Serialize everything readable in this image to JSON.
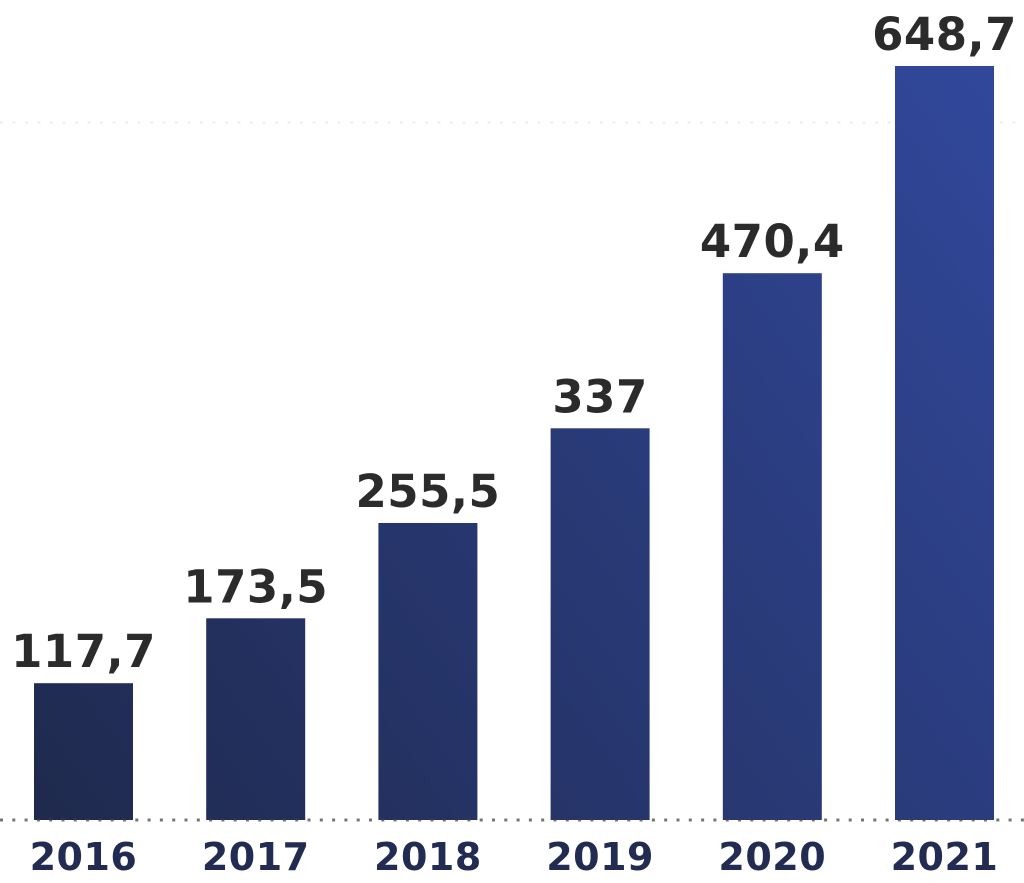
{
  "chart_data": {
    "type": "bar",
    "title": "",
    "xlabel": "",
    "ylabel": "",
    "categories": [
      "2016",
      "2017",
      "2018",
      "2019",
      "2020",
      "2021"
    ],
    "values": [
      117.7,
      173.5,
      255.5,
      337,
      470.4,
      648.7
    ],
    "value_labels": [
      "117,7",
      "173,5",
      "255,5",
      "337",
      "470,4",
      "648,7"
    ],
    "ylim": [
      0,
      706
    ],
    "baseline_value": 0,
    "faint_gridline_value": 600,
    "grid": "dotted-baseline-only",
    "legend": "none",
    "decimal_separator": ",",
    "colors": {
      "bar_gradient_dark": "#1e2849",
      "bar_gradient_light": "#32499f",
      "value_label": "#2b2b2b",
      "year_label": "#222c52",
      "baseline_dots": "#3f3f3f",
      "faint_gridline": "#ededed",
      "background": "#ffffff"
    }
  }
}
